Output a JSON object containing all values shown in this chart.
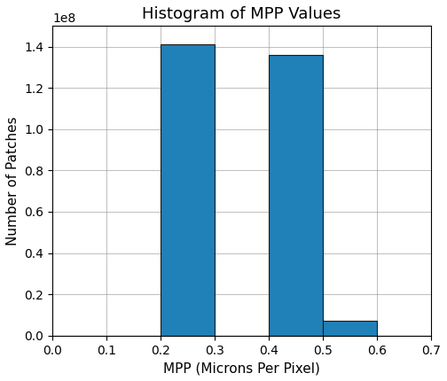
{
  "title": "Histogram of MPP Values",
  "xlabel": "MPP (Microns Per Pixel)",
  "ylabel": "Number of Patches",
  "bar_color": "#2080b8",
  "bar_edgecolor": "#1a1a1a",
  "bin_edges": [
    0.0,
    0.1,
    0.2,
    0.3,
    0.4,
    0.5,
    0.6,
    0.7
  ],
  "bar_heights": [
    0,
    0,
    141000000.0,
    0,
    136000000.0,
    7000000.0,
    0
  ],
  "xlim": [
    0.0,
    0.7
  ],
  "ylim": [
    0,
    150000000.0
  ],
  "xticks": [
    0.0,
    0.1,
    0.2,
    0.3,
    0.4,
    0.5,
    0.6,
    0.7
  ],
  "grid": true,
  "title_fontsize": 13,
  "tick_fontsize": 10,
  "label_fontsize": 11
}
